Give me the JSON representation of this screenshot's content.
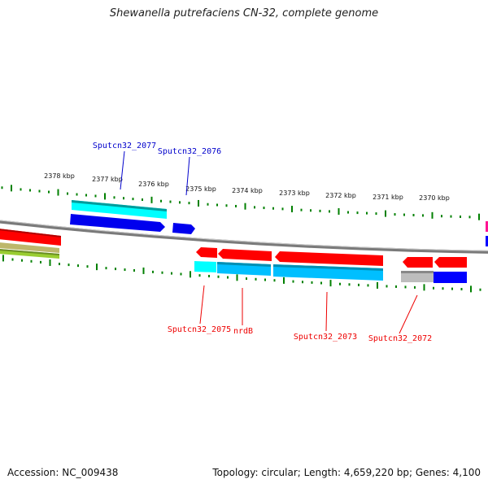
{
  "title": "Shewanella putrefaciens CN-32, complete genome",
  "footer": {
    "accession": "Accession: NC_009438",
    "stats": "Topology: circular; Length: 4,659,220 bp; Genes: 4,100"
  },
  "ruler": {
    "unit": "kbp",
    "labels": [
      "2378 kbp",
      "2377 kbp",
      "2376 kbp",
      "2375 kbp",
      "2374 kbp",
      "2373 kbp",
      "2372 kbp",
      "2371 kbp",
      "2370 kbp"
    ]
  },
  "colors": {
    "forward_gene": "#0000ee",
    "reverse_gene": "#ff0000",
    "cog_cyan": "#00ffff",
    "cog_skyblue": "#00bfff",
    "cog_gray": "#bdbdbd",
    "cog_blue": "#0000ff",
    "backbone": "#808080",
    "tick": "#008000",
    "forward_label": "#0000cc",
    "reverse_label": "#ee0000"
  },
  "genes": {
    "forward": [
      {
        "name": "Sputcn32_2077"
      },
      {
        "name": "Sputcn32_2076"
      }
    ],
    "reverse": [
      {
        "name": "Sputcn32_2075"
      },
      {
        "name": "nrdB"
      },
      {
        "name": "Sputcn32_2073"
      },
      {
        "name": "Sputcn32_2072"
      }
    ]
  }
}
